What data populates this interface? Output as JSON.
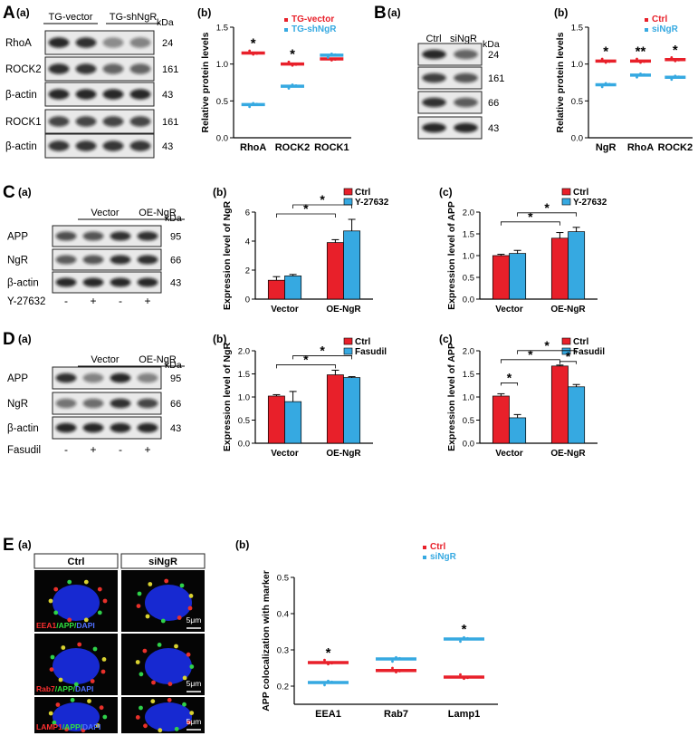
{
  "panel_letters": {
    "A": "A",
    "B": "B",
    "C": "C",
    "D": "D",
    "E": "E"
  },
  "sub_labels": {
    "a": "(a)",
    "b": "(b)",
    "c": "(c)"
  },
  "kda_unit": "kDa",
  "colors": {
    "ctrl": "#e8202a",
    "treat": "#36a9e1"
  },
  "blot_A": {
    "groups": [
      "TG-vector",
      "TG-shNgR"
    ],
    "rows": [
      {
        "label": "RhoA",
        "kda": "24"
      },
      {
        "label": "ROCK2",
        "kda": "161"
      },
      {
        "label": "β-actin",
        "kda": "43"
      },
      {
        "label": "ROCK1",
        "kda": "161"
      },
      {
        "label": "β-actin",
        "kda": "43"
      }
    ]
  },
  "blot_B": {
    "groups": [
      "Ctrl",
      "siNgR"
    ],
    "rows": [
      {
        "label": "RhoA",
        "kda": "24"
      },
      {
        "label": "ROCK2",
        "kda": "161"
      },
      {
        "label": "NgR",
        "kda": "66"
      },
      {
        "label": "β-actin",
        "kda": "43"
      }
    ]
  },
  "blot_C": {
    "groups": [
      "Vector",
      "OE-NgR"
    ],
    "rows": [
      {
        "label": "APP",
        "kda": "95"
      },
      {
        "label": "NgR",
        "kda": "66"
      },
      {
        "label": "β-actin",
        "kda": "43"
      }
    ],
    "treatment_label": "Y-27632",
    "treatment_marks": [
      "-",
      "+",
      "-",
      "+"
    ]
  },
  "blot_D": {
    "groups": [
      "Vector",
      "OE-NgR"
    ],
    "rows": [
      {
        "label": "APP",
        "kda": "95"
      },
      {
        "label": "NgR",
        "kda": "66"
      },
      {
        "label": "β-actin",
        "kda": "43"
      }
    ],
    "treatment_label": "Fasudil",
    "treatment_marks": [
      "-",
      "+",
      "-",
      "+"
    ]
  },
  "micro_E": {
    "columns": [
      "Ctrl",
      "siNgR"
    ],
    "row_labels": [
      {
        "a": "EEA1",
        "b": "/APP/",
        "c": "DAPI"
      },
      {
        "a": "Rab7",
        "b": "/APP/",
        "c": "DAPI"
      },
      {
        "a": "LAMP1",
        "b": "/APP/",
        "c": "DAPI"
      }
    ],
    "scale": "5μm"
  },
  "chart_data": [
    {
      "id": "A_b",
      "type": "scatter",
      "xlabel": "",
      "ylabel": "Relative protein levels",
      "categories": [
        "RhoA",
        "ROCK2",
        "ROCK1"
      ],
      "ylim": [
        0,
        1.5
      ],
      "yticks": [
        "0.0",
        "0.5",
        "1.0",
        "1.5"
      ],
      "series": [
        {
          "name": "TG-vector",
          "means": [
            1.15,
            1.0,
            1.07
          ]
        },
        {
          "name": "TG-shNgR",
          "means": [
            0.45,
            0.7,
            1.12
          ]
        }
      ],
      "annotations": [
        "*",
        "*",
        ""
      ]
    },
    {
      "id": "B_b",
      "type": "scatter",
      "xlabel": "",
      "ylabel": "Relative protein levels",
      "categories": [
        "NgR",
        "RhoA",
        "ROCK2"
      ],
      "ylim": [
        0,
        1.5
      ],
      "yticks": [
        "0.0",
        "0.5",
        "1.0",
        "1.5"
      ],
      "series": [
        {
          "name": "Ctrl",
          "means": [
            1.04,
            1.04,
            1.06
          ]
        },
        {
          "name": "siNgR",
          "means": [
            0.72,
            0.85,
            0.82
          ]
        }
      ],
      "annotations": [
        "*",
        "**",
        "*"
      ]
    },
    {
      "id": "C_b",
      "type": "bar",
      "xlabel": "",
      "ylabel": "Expression level of NgR",
      "categories": [
        "Vector",
        "OE-NgR"
      ],
      "ylim": [
        0,
        6
      ],
      "yticks": [
        "0",
        "2",
        "4",
        "6"
      ],
      "series": [
        {
          "name": "Ctrl",
          "values": [
            1.3,
            3.9
          ],
          "err": [
            0.25,
            0.2
          ]
        },
        {
          "name": "Y-27632",
          "values": [
            1.6,
            4.7
          ],
          "err": [
            0.1,
            0.8
          ]
        }
      ],
      "sig": "*"
    },
    {
      "id": "C_c",
      "type": "bar",
      "xlabel": "",
      "ylabel": "Expression level of APP",
      "categories": [
        "Vector",
        "OE-NgR"
      ],
      "ylim": [
        0,
        2.0
      ],
      "yticks": [
        "0.0",
        "0.5",
        "1.0",
        "1.5",
        "2.0"
      ],
      "series": [
        {
          "name": "Ctrl",
          "values": [
            1.0,
            1.4
          ],
          "err": [
            0.03,
            0.13
          ]
        },
        {
          "name": "Y-27632",
          "values": [
            1.05,
            1.55
          ],
          "err": [
            0.07,
            0.1
          ]
        }
      ],
      "sig": "*"
    },
    {
      "id": "D_b",
      "type": "bar",
      "xlabel": "",
      "ylabel": "Expression level of NgR",
      "categories": [
        "Vector",
        "OE-NgR"
      ],
      "ylim": [
        0,
        2.0
      ],
      "yticks": [
        "0.0",
        "0.5",
        "1.0",
        "1.5",
        "2.0"
      ],
      "series": [
        {
          "name": "Ctrl",
          "values": [
            1.02,
            1.48
          ],
          "err": [
            0.03,
            0.1
          ]
        },
        {
          "name": "Fasudil",
          "values": [
            0.9,
            1.42
          ],
          "err": [
            0.22,
            0.02
          ]
        }
      ],
      "sig": "*"
    },
    {
      "id": "D_c",
      "type": "bar",
      "xlabel": "",
      "ylabel": "Expression level of APP",
      "categories": [
        "Vector",
        "OE-NgR"
      ],
      "ylim": [
        0,
        2.0
      ],
      "yticks": [
        "0.0",
        "0.5",
        "1.0",
        "1.5",
        "2.0"
      ],
      "series": [
        {
          "name": "Ctrl",
          "values": [
            1.02,
            1.67
          ],
          "err": [
            0.05,
            0.02
          ]
        },
        {
          "name": "Fasudil",
          "values": [
            0.55,
            1.22
          ],
          "err": [
            0.07,
            0.05
          ]
        }
      ],
      "sig": "*"
    },
    {
      "id": "E_b",
      "type": "scatter",
      "xlabel": "",
      "ylabel": "APP colocalization with marker",
      "categories": [
        "EEA1",
        "Rab7",
        "Lamp1"
      ],
      "ylim": [
        0.15,
        0.5
      ],
      "yticks": [
        "0.2",
        "0.3",
        "0.4",
        "0.5"
      ],
      "series": [
        {
          "name": "Ctrl",
          "means": [
            0.265,
            0.243,
            0.225
          ]
        },
        {
          "name": "siNgR",
          "means": [
            0.21,
            0.275,
            0.33
          ]
        }
      ],
      "annotations": [
        "*",
        "",
        "*"
      ]
    }
  ]
}
